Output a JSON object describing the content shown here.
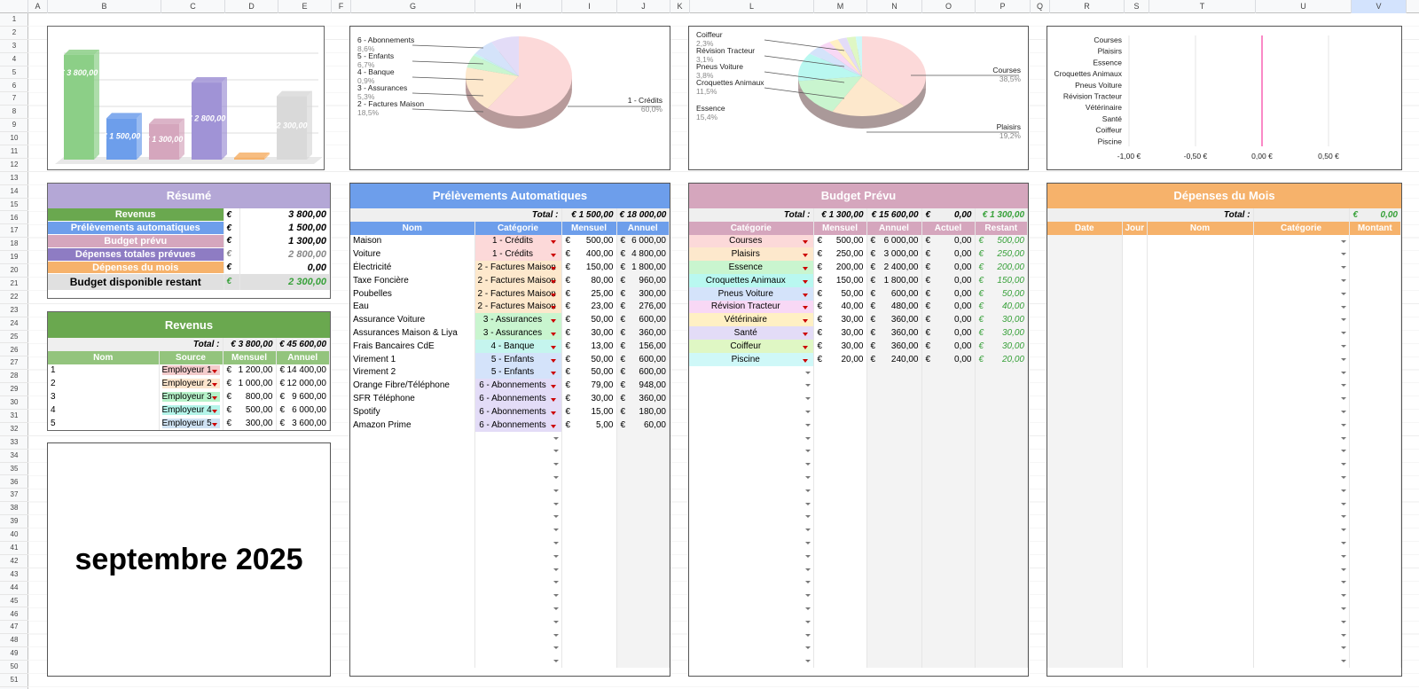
{
  "columns": [
    "A",
    "B",
    "C",
    "D",
    "E",
    "F",
    "G",
    "H",
    "I",
    "J",
    "K",
    "L",
    "M",
    "N",
    "O",
    "P",
    "Q",
    "R",
    "S",
    "T",
    "U",
    "V"
  ],
  "rows": [
    "1",
    "2",
    "3",
    "4",
    "5",
    "6",
    "7",
    "8",
    "9",
    "10",
    "11",
    "12",
    "13",
    "14",
    "15",
    "16",
    "17",
    "18",
    "19",
    "20",
    "21",
    "22",
    "23",
    "24",
    "25",
    "26",
    "27",
    "28",
    "29",
    "30",
    "31",
    "32",
    "33",
    "34",
    "35",
    "36",
    "37",
    "38",
    "39",
    "40",
    "41",
    "42",
    "43",
    "44",
    "45",
    "46",
    "47",
    "48",
    "49",
    "50",
    "51"
  ],
  "bar_chart": {
    "labels": [
      "€ 3 800,00",
      "€ 1 500,00",
      "€ 1 300,00",
      "€ 2 800,00",
      "",
      "2 300,00"
    ],
    "colors": [
      "#8ccf87",
      "#6d9eeb",
      "#d5a6bd",
      "#a093d6",
      "#f6b26b",
      "#d9d9d9"
    ],
    "values": [
      3800,
      1500,
      1300,
      2800,
      0,
      2300
    ]
  },
  "pie1": {
    "labels": [
      {
        "name": "6 - Abonnements",
        "pct": "8,6%"
      },
      {
        "name": "5 - Enfants",
        "pct": "6,7%"
      },
      {
        "name": "4 - Banque",
        "pct": "0,9%"
      },
      {
        "name": "3 - Assurances",
        "pct": "5,3%"
      },
      {
        "name": "2 - Factures Maison",
        "pct": "18,5%"
      }
    ],
    "right": {
      "name": "1 - Crédits",
      "pct": "60,0%"
    }
  },
  "pie2": {
    "left": [
      {
        "name": "Coiffeur",
        "pct": "2,3%"
      },
      {
        "name": "Révision Tracteur",
        "pct": "3,1%"
      },
      {
        "name": "Pneus Voiture",
        "pct": "3,8%"
      },
      {
        "name": "Croquettes Animaux",
        "pct": "11,5%"
      },
      {
        "name": "Essence",
        "pct": "15,4%"
      }
    ],
    "right": [
      {
        "name": "Courses",
        "pct": "38,5%"
      },
      {
        "name": "Plaisirs",
        "pct": "19,2%"
      }
    ]
  },
  "hbar": {
    "categories": [
      "Courses",
      "Plaisirs",
      "Essence",
      "Croquettes Animaux",
      "Pneus Voiture",
      "Révision Tracteur",
      "Vétérinaire",
      "Santé",
      "Coiffeur",
      "Piscine"
    ],
    "ticks": [
      "-1,00 €",
      "-0,50 €",
      "0,00 €",
      "0,50 €"
    ]
  },
  "resume": {
    "title": "Résumé",
    "rows": [
      {
        "label": "Revenus",
        "cur": "€",
        "value": "3 800,00",
        "color": "#6aa84f"
      },
      {
        "label": "Prélèvements automatiques",
        "cur": "€",
        "value": "1 500,00",
        "color": "#6d9eeb"
      },
      {
        "label": "Budget prévu",
        "cur": "€",
        "value": "1 300,00",
        "color": "#d5a6bd"
      },
      {
        "label": "Dépenses totales prévues",
        "cur": "€",
        "value": "2 800,00",
        "color": "#8e7cc3"
      },
      {
        "label": "Dépenses du mois",
        "cur": "€",
        "value": "0,00",
        "color": "#f6b26b"
      }
    ],
    "final": {
      "label": "Budget disponible restant",
      "cur": "€",
      "value": "2 300,00"
    }
  },
  "revenus": {
    "title": "Revenus",
    "total_label": "Total :",
    "total_m": "€ 3 800,00",
    "total_a": "€ 45 600,00",
    "headers": [
      "Nom",
      "Source",
      "Mensuel",
      "Annuel"
    ],
    "rows": [
      {
        "nom": "1",
        "source": "Employeur 1",
        "color": "#f4cccc",
        "m": "1 200,00",
        "a": "14 400,00"
      },
      {
        "nom": "2",
        "source": "Employeur 2",
        "color": "#fce5cd",
        "m": "1 000,00",
        "a": "12 000,00"
      },
      {
        "nom": "3",
        "source": "Employeur 3",
        "color": "#b6f2c9",
        "m": "800,00",
        "a": "9 600,00"
      },
      {
        "nom": "4",
        "source": "Employeur 4",
        "color": "#b4f5ea",
        "m": "500,00",
        "a": "6 000,00"
      },
      {
        "nom": "5",
        "source": "Employeur 5",
        "color": "#cfe2f3",
        "m": "300,00",
        "a": "3 600,00"
      }
    ]
  },
  "month": "septembre 2025",
  "prelev": {
    "title": "Prélèvements Automatiques",
    "total_label": "Total :",
    "total_m": "€ 1 500,00",
    "total_a": "€ 18 000,00",
    "headers": [
      "Nom",
      "Catégorie",
      "Mensuel",
      "Annuel"
    ],
    "rows": [
      {
        "nom": "Maison",
        "cat": "1 - Crédits",
        "color": "#fcd9d9",
        "m": "500,00",
        "a": "6 000,00"
      },
      {
        "nom": "Voiture",
        "cat": "1 - Crédits",
        "color": "#fcd9d9",
        "m": "400,00",
        "a": "4 800,00"
      },
      {
        "nom": "Électricité",
        "cat": "2 - Factures Maison",
        "color": "#fde8cc",
        "m": "150,00",
        "a": "1 800,00"
      },
      {
        "nom": "Taxe Foncière",
        "cat": "2 - Factures Maison",
        "color": "#fde8cc",
        "m": "80,00",
        "a": "960,00"
      },
      {
        "nom": "Poubelles",
        "cat": "2 - Factures Maison",
        "color": "#fde8cc",
        "m": "25,00",
        "a": "300,00"
      },
      {
        "nom": "Eau",
        "cat": "2 - Factures Maison",
        "color": "#fde8cc",
        "m": "23,00",
        "a": "276,00"
      },
      {
        "nom": "Assurance Voiture",
        "cat": "3 - Assurances",
        "color": "#c9f5cf",
        "m": "50,00",
        "a": "600,00"
      },
      {
        "nom": "Assurances Maison & Liya",
        "cat": "3 - Assurances",
        "color": "#c9f5cf",
        "m": "30,00",
        "a": "360,00"
      },
      {
        "nom": "Frais Bancaires CdE",
        "cat": "4 - Banque",
        "color": "#c5f5ee",
        "m": "13,00",
        "a": "156,00"
      },
      {
        "nom": "Virement 1",
        "cat": "5 - Enfants",
        "color": "#d4e3fa",
        "m": "50,00",
        "a": "600,00"
      },
      {
        "nom": "Virement 2",
        "cat": "5 - Enfants",
        "color": "#d4e3fa",
        "m": "50,00",
        "a": "600,00"
      },
      {
        "nom": "Orange Fibre/Téléphone",
        "cat": "6 - Abonnements",
        "color": "#e3dcf7",
        "m": "79,00",
        "a": "948,00"
      },
      {
        "nom": "SFR Téléphone",
        "cat": "6 - Abonnements",
        "color": "#e3dcf7",
        "m": "30,00",
        "a": "360,00"
      },
      {
        "nom": "Spotify",
        "cat": "6 - Abonnements",
        "color": "#e3dcf7",
        "m": "15,00",
        "a": "180,00"
      },
      {
        "nom": "Amazon Prime",
        "cat": "6 - Abonnements",
        "color": "#e3dcf7",
        "m": "5,00",
        "a": "60,00"
      }
    ]
  },
  "budget": {
    "title": "Budget Prévu",
    "total_label": "Total :",
    "total_m": "€ 1 300,00",
    "total_a": "€ 15 600,00",
    "total_actuel_cur": "€",
    "total_actuel": "0,00",
    "total_rest": "€ 1 300,00",
    "headers": [
      "Catégorie",
      "Mensuel",
      "Annuel",
      "Actuel",
      "Restant"
    ],
    "rows": [
      {
        "cat": "Courses",
        "color": "#fcd9d9",
        "m": "500,00",
        "a": "6 000,00",
        "act": "0,00",
        "rest": "500,00"
      },
      {
        "cat": "Plaisirs",
        "color": "#fde8cc",
        "m": "250,00",
        "a": "3 000,00",
        "act": "0,00",
        "rest": "250,00"
      },
      {
        "cat": "Essence",
        "color": "#c9f5cf",
        "m": "200,00",
        "a": "2 400,00",
        "act": "0,00",
        "rest": "200,00"
      },
      {
        "cat": "Croquettes Animaux",
        "color": "#b9f8f0",
        "m": "150,00",
        "a": "1 800,00",
        "act": "0,00",
        "rest": "150,00"
      },
      {
        "cat": "Pneus Voiture",
        "color": "#d4e3fa",
        "m": "50,00",
        "a": "600,00",
        "act": "0,00",
        "rest": "50,00"
      },
      {
        "cat": "Révision Tracteur",
        "color": "#f8d8f5",
        "m": "40,00",
        "a": "480,00",
        "act": "0,00",
        "rest": "40,00"
      },
      {
        "cat": "Vétérinaire",
        "color": "#fff0c4",
        "m": "30,00",
        "a": "360,00",
        "act": "0,00",
        "rest": "30,00"
      },
      {
        "cat": "Santé",
        "color": "#e3dcf7",
        "m": "30,00",
        "a": "360,00",
        "act": "0,00",
        "rest": "30,00"
      },
      {
        "cat": "Coiffeur",
        "color": "#dff7c4",
        "m": "30,00",
        "a": "360,00",
        "act": "0,00",
        "rest": "30,00"
      },
      {
        "cat": "Piscine",
        "color": "#cff8f8",
        "m": "20,00",
        "a": "240,00",
        "act": "0,00",
        "rest": "20,00"
      }
    ]
  },
  "depenses": {
    "title": "Dépenses du Mois",
    "total_label": "Total :",
    "total_cur": "€",
    "total": "0,00",
    "headers": [
      "Date",
      "Jour",
      "Nom",
      "Catégorie",
      "Montant"
    ]
  }
}
